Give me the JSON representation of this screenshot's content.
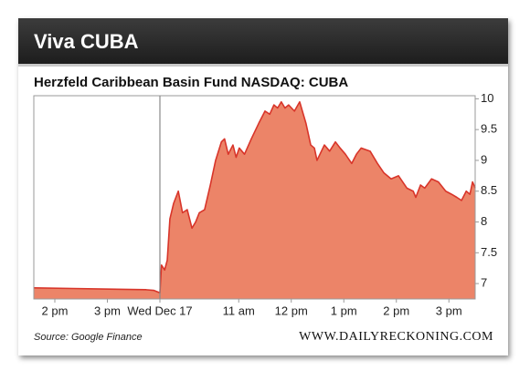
{
  "chart_data": {
    "type": "area",
    "title": "Viva CUBA",
    "subtitle": "Herzfeld Caribbean Basin Fund NASDAQ: CUBA",
    "source": "Source: Google Finance",
    "credit": "WWW.DAILYRECKONING.COM",
    "color": "#ec8468",
    "line_color": "#d8352a",
    "x": [
      13.6,
      14.35,
      15.04,
      15.74,
      15.88,
      16.0,
      16.03,
      16.09,
      16.14,
      16.19,
      16.26,
      16.35,
      16.43,
      16.52,
      16.61,
      16.68,
      16.75,
      16.85,
      16.96,
      17.06,
      17.17,
      17.23,
      17.3,
      17.39,
      17.45,
      17.51,
      17.61,
      17.74,
      17.88,
      18.0,
      18.09,
      18.17,
      18.24,
      18.31,
      18.38,
      18.45,
      18.56,
      18.66,
      18.78,
      18.87,
      18.94,
      18.99,
      19.13,
      19.23,
      19.34,
      19.43,
      19.53,
      19.65,
      19.74,
      19.83,
      20.0,
      20.14,
      20.26,
      20.4,
      20.54,
      20.7,
      20.82,
      20.87,
      20.96,
      21.04,
      21.17,
      21.3,
      21.44,
      21.55,
      21.65,
      21.74,
      21.83,
      21.9,
      21.95,
      22.0
    ],
    "values": [
      6.93,
      6.92,
      6.91,
      6.9,
      6.89,
      6.85,
      7.3,
      7.22,
      7.38,
      8.05,
      8.3,
      8.5,
      8.15,
      8.2,
      7.9,
      8.0,
      8.15,
      8.2,
      8.6,
      9.0,
      9.3,
      9.35,
      9.1,
      9.25,
      9.05,
      9.2,
      9.1,
      9.35,
      9.6,
      9.8,
      9.75,
      9.9,
      9.85,
      9.95,
      9.85,
      9.9,
      9.8,
      9.95,
      9.6,
      9.25,
      9.2,
      9.0,
      9.25,
      9.15,
      9.3,
      9.2,
      9.1,
      8.95,
      9.1,
      9.2,
      9.15,
      8.95,
      8.8,
      8.7,
      8.75,
      8.55,
      8.5,
      8.4,
      8.6,
      8.55,
      8.7,
      8.65,
      8.5,
      8.45,
      8.4,
      8.35,
      8.5,
      8.45,
      8.65,
      8.55
    ],
    "xlim": [
      13.6,
      22.0
    ],
    "xticks": [
      {
        "value": 14,
        "label": "2 pm"
      },
      {
        "value": 15,
        "label": "3 pm"
      },
      {
        "value": 16,
        "label": "Wed Dec 17"
      },
      {
        "value": 17.5,
        "label": "11 am"
      },
      {
        "value": 18.5,
        "label": "12 pm"
      },
      {
        "value": 19.5,
        "label": "1 pm"
      },
      {
        "value": 20.5,
        "label": "2 pm"
      },
      {
        "value": 21.5,
        "label": "3 pm"
      }
    ],
    "divider_x": 16,
    "ylim": [
      6.75,
      10.05
    ],
    "yticks": [
      7,
      7.5,
      8,
      8.5,
      9,
      9.5,
      10
    ]
  }
}
